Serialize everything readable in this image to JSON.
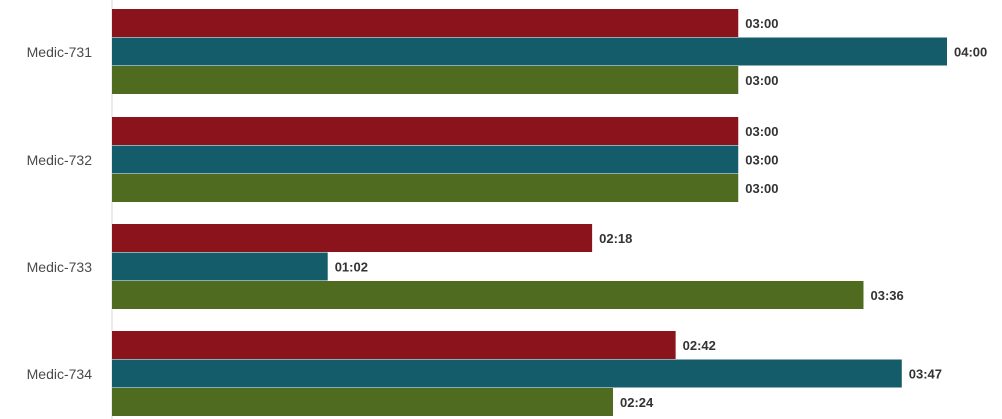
{
  "chart_data": {
    "type": "bar",
    "orientation": "horizontal",
    "categories": [
      "Medic-731",
      "Medic-732",
      "Medic-733",
      "Medic-734"
    ],
    "value_unit": "mm:ss",
    "series": [
      {
        "color": "#8b141c",
        "values": [
          180,
          180,
          138,
          162
        ],
        "labels": [
          "03:00",
          "03:00",
          "02:18",
          "02:42"
        ]
      },
      {
        "color": "#145c69",
        "values": [
          240,
          180,
          62,
          227
        ],
        "labels": [
          "04:00",
          "03:00",
          "01:02",
          "03:47"
        ]
      },
      {
        "color": "#4f6b20",
        "values": [
          180,
          180,
          216,
          144
        ],
        "labels": [
          "03:00",
          "03:00",
          "03:36",
          "02:24"
        ]
      }
    ],
    "grid": false,
    "legend": "none"
  }
}
